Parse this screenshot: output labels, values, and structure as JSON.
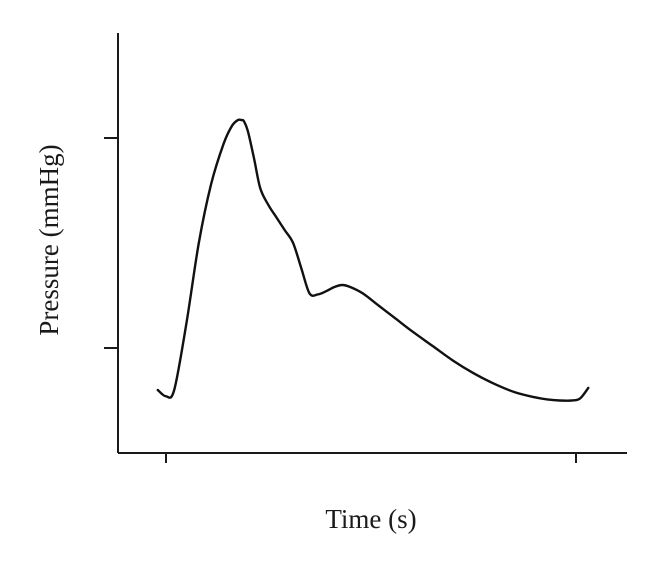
{
  "chart_data": {
    "type": "line",
    "xlabel": "Time (s)",
    "ylabel": "Pressure (mmHg)",
    "xlim": [
      0,
      1.1
    ],
    "ylim": [
      0,
      2
    ],
    "x_ticks": [
      0,
      1
    ],
    "y_ticks": [
      0.5,
      1.5
    ],
    "grid": false,
    "series": [
      {
        "color": "#111111",
        "x": [
          -0.02,
          0.0,
          0.02,
          0.05,
          0.08,
          0.11,
          0.14,
          0.16,
          0.175,
          0.185,
          0.19,
          0.2,
          0.215,
          0.23,
          0.25,
          0.27,
          0.29,
          0.31,
          0.33,
          0.35,
          0.37,
          0.39,
          0.41,
          0.43,
          0.45,
          0.48,
          0.52,
          0.56,
          0.6,
          0.65,
          0.7,
          0.75,
          0.8,
          0.85,
          0.9,
          0.93,
          0.96,
          0.99,
          1.01,
          1.03
        ],
        "y": [
          0.3,
          0.27,
          0.3,
          0.62,
          1.0,
          1.28,
          1.47,
          1.555,
          1.585,
          1.585,
          1.58,
          1.53,
          1.4,
          1.26,
          1.18,
          1.12,
          1.06,
          1.0,
          0.88,
          0.76,
          0.755,
          0.77,
          0.79,
          0.8,
          0.79,
          0.76,
          0.7,
          0.64,
          0.58,
          0.51,
          0.44,
          0.38,
          0.33,
          0.29,
          0.265,
          0.255,
          0.25,
          0.25,
          0.26,
          0.31
        ]
      }
    ]
  }
}
